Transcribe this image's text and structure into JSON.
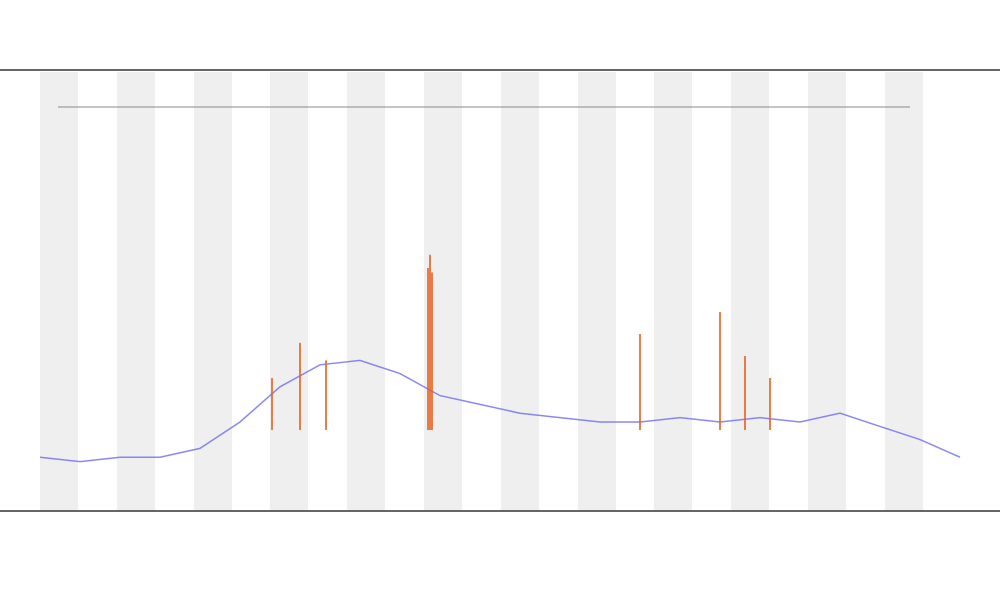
{
  "chart_data": {
    "type": "line",
    "xlim": [
      0,
      920
    ],
    "ylim": [
      0,
      100
    ],
    "series": [
      {
        "color": "#6b6bf0",
        "x": [
          0,
          40,
          80,
          120,
          160,
          200,
          240,
          280,
          320,
          360,
          400,
          440,
          480,
          520,
          560,
          600,
          640,
          680,
          720,
          760,
          800,
          840,
          880,
          920
        ],
        "values": [
          12,
          11,
          12,
          12,
          14,
          20,
          28,
          33,
          34,
          31,
          26,
          24,
          22,
          21,
          20,
          20,
          21,
          20,
          21,
          20,
          22,
          19,
          16,
          12
        ]
      },
      {
        "color": "#e8601c",
        "mode": "spikes",
        "x": [
          232,
          260,
          286,
          388,
          390,
          392,
          600,
          680,
          705,
          730
        ],
        "values": [
          30,
          38,
          34,
          55,
          58,
          54,
          40,
          45,
          35,
          30
        ]
      }
    ]
  }
}
